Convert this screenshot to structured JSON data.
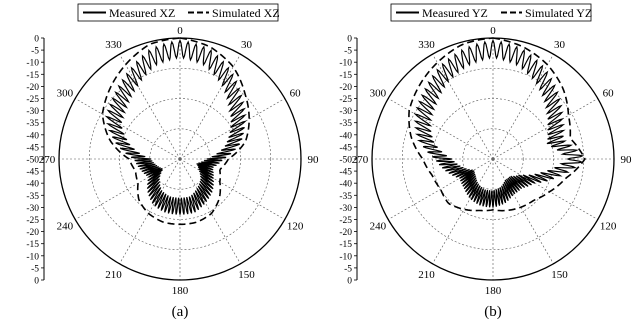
{
  "chart_data": [
    {
      "type": "polar-line",
      "panel_label": "(a)",
      "angle_unit": "degrees",
      "angle_zero": "top",
      "angle_direction": "clockwise",
      "angle_ticks": [
        "0",
        "30",
        "60",
        "90",
        "120",
        "150",
        "180",
        "210",
        "240",
        "270",
        "300",
        "330"
      ],
      "r_ticks": [
        "0",
        "-5",
        "-10",
        "-15",
        "-20",
        "-25",
        "-30",
        "-35",
        "-40",
        "-45",
        "-50",
        "-45",
        "-40",
        "-35",
        "-30",
        "-25",
        "-20",
        "-15",
        "-10",
        "-5",
        "0"
      ],
      "rlim": [
        -50,
        0
      ],
      "grid": true,
      "legend_position": "top",
      "series": [
        {
          "name": "Measured XZ",
          "style": "solid",
          "color": "#000000",
          "ripple_db": 7,
          "ripple_period_deg": 4,
          "angles": [
            0,
            15,
            30,
            45,
            60,
            75,
            90,
            105,
            120,
            135,
            150,
            165,
            180,
            195,
            210,
            225,
            240,
            255,
            270,
            285,
            300,
            315,
            330,
            345,
            360
          ],
          "values": [
            -1,
            -3,
            -8,
            -14,
            -19,
            -24,
            -32,
            -36,
            -34,
            -31,
            -29,
            -27,
            -27,
            -27,
            -28,
            -31,
            -35,
            -33,
            -31,
            -22,
            -15,
            -12,
            -8,
            -3,
            -1
          ]
        },
        {
          "name": "Simulated XZ",
          "style": "dashed",
          "color": "#000000",
          "angles": [
            0,
            15,
            30,
            45,
            60,
            75,
            90,
            105,
            120,
            135,
            150,
            165,
            180,
            195,
            210,
            225,
            240,
            255,
            270,
            285,
            300,
            315,
            330,
            345,
            360
          ],
          "values": [
            0,
            -2,
            -6,
            -12,
            -17,
            -22,
            -30,
            -33,
            -31,
            -27,
            -24,
            -23,
            -23,
            -23,
            -24,
            -26,
            -30,
            -31,
            -29,
            -20,
            -13,
            -9,
            -5,
            -1,
            0
          ]
        }
      ]
    },
    {
      "type": "polar-line",
      "panel_label": "(b)",
      "angle_unit": "degrees",
      "angle_zero": "top",
      "angle_direction": "clockwise",
      "angle_ticks": [
        "0",
        "30",
        "60",
        "90",
        "120",
        "150",
        "180",
        "210",
        "240",
        "270",
        "300",
        "330"
      ],
      "r_ticks": [
        "0",
        "-5",
        "-10",
        "-15",
        "-20",
        "-25",
        "-30",
        "-35",
        "-40",
        "-45",
        "-50",
        "-45",
        "-40",
        "-35",
        "-30",
        "-25",
        "-20",
        "-15",
        "-10",
        "-5",
        "0"
      ],
      "rlim": [
        -50,
        0
      ],
      "grid": true,
      "legend_position": "top",
      "series": [
        {
          "name": "Measured YZ",
          "style": "solid",
          "color": "#000000",
          "ripple_db": 7,
          "ripple_period_deg": 4,
          "angles": [
            0,
            15,
            30,
            45,
            60,
            75,
            90,
            105,
            120,
            135,
            150,
            165,
            180,
            195,
            210,
            225,
            240,
            255,
            270,
            285,
            300,
            315,
            330,
            345,
            360
          ],
          "values": [
            -1,
            -3,
            -7,
            -12,
            -17,
            -20,
            -12,
            -22,
            -30,
            -33,
            -33,
            -31,
            -30,
            -30,
            -31,
            -33,
            -34,
            -30,
            -26,
            -18,
            -13,
            -10,
            -6,
            -3,
            -1
          ]
        },
        {
          "name": "Simulated YZ",
          "style": "dashed",
          "color": "#000000",
          "angles": [
            0,
            15,
            30,
            45,
            60,
            75,
            90,
            105,
            120,
            135,
            150,
            165,
            180,
            195,
            210,
            225,
            240,
            255,
            270,
            285,
            300,
            315,
            330,
            345,
            360
          ],
          "values": [
            0,
            -2,
            -5,
            -9,
            -14,
            -17,
            -12,
            -19,
            -23,
            -26,
            -27,
            -28,
            -29,
            -28,
            -26,
            -24,
            -25,
            -24,
            -21,
            -15,
            -10,
            -7,
            -4,
            -1,
            0
          ]
        }
      ]
    }
  ]
}
